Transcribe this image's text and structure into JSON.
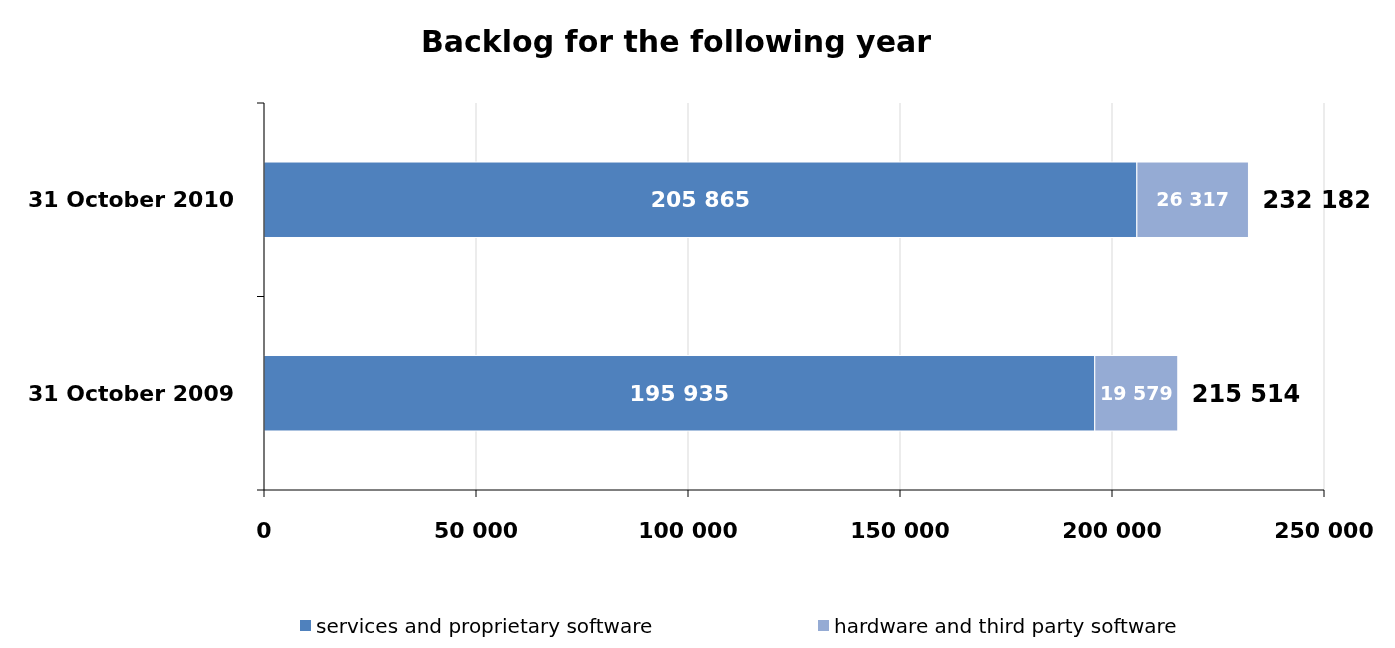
{
  "chart_data": {
    "type": "bar",
    "orientation": "horizontal",
    "stacked": true,
    "title": "Backlog for the following year",
    "categories": [
      "31 October 2010",
      "31 October 2009"
    ],
    "series": [
      {
        "name": "services and proprietary software",
        "color": "#4f81bd",
        "values": [
          205865,
          195935
        ],
        "value_labels": [
          "205 865",
          "195 935"
        ]
      },
      {
        "name": "hardware and third party software",
        "color": "#95abd4",
        "values": [
          26317,
          19579
        ],
        "value_labels": [
          "26 317",
          "19 579"
        ]
      }
    ],
    "totals": [
      "232 182",
      "215 514"
    ],
    "xlim": [
      0,
      250000
    ],
    "xticks": [
      0,
      {
        "value": 50000,
        "label": "50 000"
      },
      {
        "value": 100000,
        "label": "100 000"
      },
      {
        "value": 150000,
        "label": "150 000"
      },
      {
        "value": 200000,
        "label": "200 000"
      },
      {
        "value": 250000,
        "label": "250 000"
      }
    ],
    "grid": "x",
    "legend": "bottom"
  }
}
